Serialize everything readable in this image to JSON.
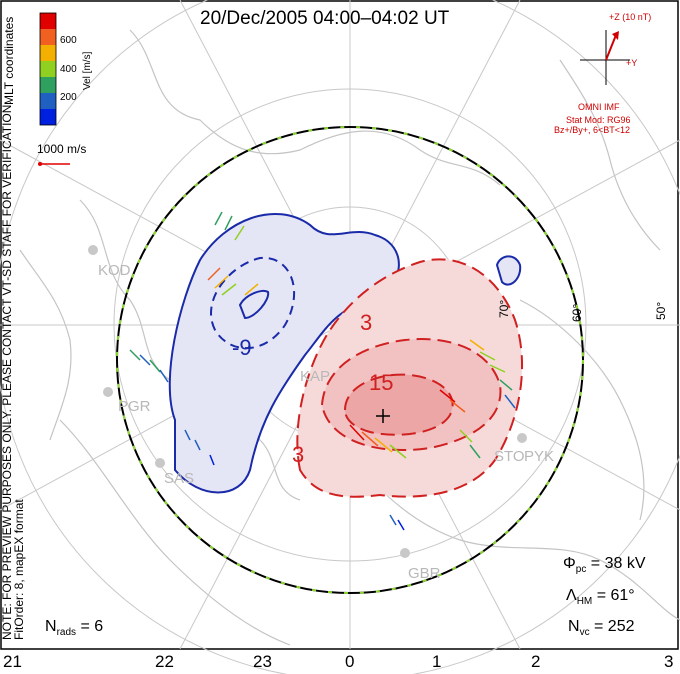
{
  "title": "20/Dec/2005 04:00–04:02 UT",
  "mlt_labels": [
    "21",
    "22",
    "23",
    "0",
    "1",
    "2",
    "3"
  ],
  "latitude_labels": [
    "70°",
    "60°",
    "50°"
  ],
  "station_labels": [
    "KOD",
    "PGR",
    "SAS",
    "KAP",
    "STO",
    "PYK",
    "GBR"
  ],
  "colorbar": {
    "ticks": [
      "600",
      "400",
      "200"
    ],
    "label": "Vel [m/s]",
    "coord_label": "MLT coordinates",
    "colors": [
      "#e00000",
      "#f06020",
      "#f4b000",
      "#90d020",
      "#30a060",
      "#2060c0",
      "#0020e0"
    ]
  },
  "reference_vector": "1000 m/s",
  "contour_labels": [
    "-9",
    "3",
    "15",
    "3"
  ],
  "imf": {
    "z_label": "+Z (10 nT)",
    "y_label": "+Y",
    "source": "OMNI IMF",
    "model_line1": "Stat Mod: RG96",
    "model_line2": "Bz+/By+, 6<BT<12"
  },
  "notes": {
    "line1": "NOTE: FOR PREVIEW PURPOSES ONLY. PLEASE CONTACT VT-SD STAFF FOR VERIFICATION.",
    "line2": "FitOrder: 8, mapEX format"
  },
  "stats": {
    "phi_pc_value": "= 38 kV",
    "lambda_hm_value": "= 61°",
    "n_vc_value": "= 252",
    "n_rads_value": "= 6"
  },
  "colors": {
    "negative_contour": "#1a2aa8",
    "positive_contour": "#d02020",
    "negative_fill": "#e4e6f6",
    "positive_fill": "#f6dada",
    "grid": "#c8c8c8",
    "coastline": "#c4c4c4",
    "boundary": "#000000"
  }
}
